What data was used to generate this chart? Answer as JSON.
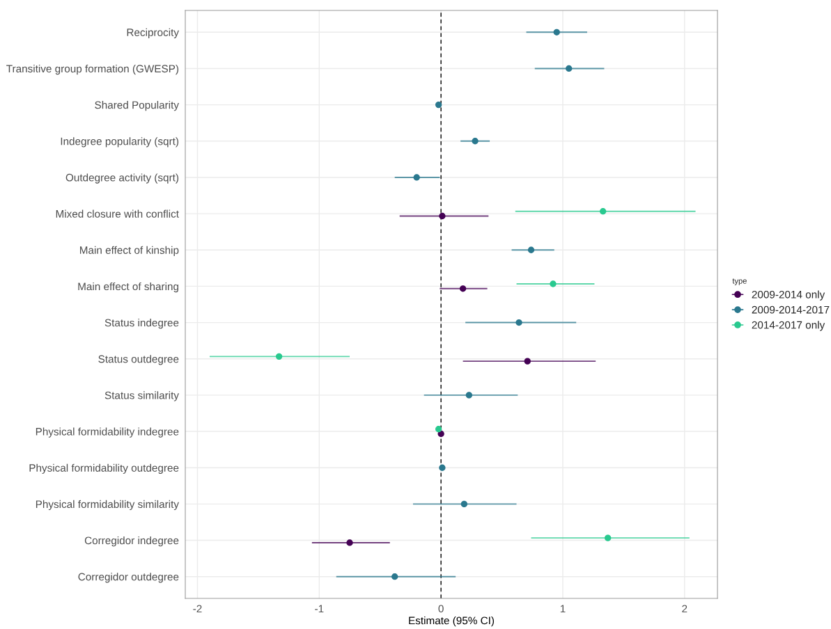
{
  "chart_data": {
    "type": "scatter",
    "orientation": "horizontal",
    "xlabel": "Estimate (95% CI)",
    "legend_title": "type",
    "legend": "right",
    "grid": true,
    "marker": "circle",
    "categories": [
      "Reciprocity",
      "Transitive group formation (GWESP)",
      "Shared Popularity",
      "Indegree popularity (sqrt)",
      "Outdegree activity (sqrt)",
      "Mixed closure with conflict",
      "Main effect of kinship",
      "Main effect of sharing",
      "Status indegree",
      "Status outdegree",
      "Status similarity",
      "Physical formidability indegree",
      "Physical formidability outdegree",
      "Physical formidability similarity",
      "Corregidor indegree",
      "Corregidor outdegree"
    ],
    "xlim": [
      -2.1,
      2.27
    ],
    "xticks": [
      -2,
      -1,
      0,
      1,
      2
    ],
    "ref_lines": [
      {
        "axis": "x",
        "value": 0,
        "line_style": "dashed",
        "color": "#000000"
      }
    ],
    "series": [
      {
        "name": "2009-2014 only",
        "color": "#440154",
        "values": [
          null,
          null,
          null,
          null,
          null,
          0.01,
          null,
          0.18,
          null,
          0.71,
          null,
          0.0,
          null,
          null,
          -0.75,
          null
        ],
        "errors": [
          null,
          null,
          null,
          null,
          null,
          [
            -0.34,
            0.39
          ],
          null,
          [
            -0.01,
            0.38
          ],
          null,
          [
            0.18,
            1.27
          ],
          null,
          null,
          null,
          null,
          [
            -1.06,
            -0.42
          ],
          null
        ]
      },
      {
        "name": "2009-2014-2017",
        "color": "#2a788e",
        "values": [
          0.95,
          1.05,
          -0.02,
          0.28,
          -0.2,
          null,
          0.74,
          null,
          0.64,
          null,
          0.23,
          null,
          0.01,
          0.19,
          null,
          -0.38
        ],
        "errors": [
          [
            0.7,
            1.2
          ],
          [
            0.77,
            1.34
          ],
          null,
          [
            0.16,
            0.4
          ],
          [
            -0.38,
            -0.01
          ],
          null,
          [
            0.58,
            0.93
          ],
          null,
          [
            0.2,
            1.11
          ],
          null,
          [
            -0.14,
            0.63
          ],
          null,
          null,
          [
            -0.23,
            0.62
          ],
          null,
          [
            -0.86,
            0.12
          ]
        ]
      },
      {
        "name": "2014-2017 only",
        "color": "#29c98f",
        "values": [
          null,
          null,
          null,
          null,
          null,
          1.33,
          null,
          0.92,
          null,
          -1.33,
          null,
          -0.02,
          null,
          null,
          1.37,
          null
        ],
        "errors": [
          null,
          null,
          null,
          null,
          null,
          [
            0.61,
            2.09
          ],
          null,
          [
            0.62,
            1.26
          ],
          null,
          [
            -1.9,
            -0.75
          ],
          null,
          null,
          null,
          null,
          [
            0.74,
            2.04
          ],
          null
        ]
      }
    ]
  }
}
